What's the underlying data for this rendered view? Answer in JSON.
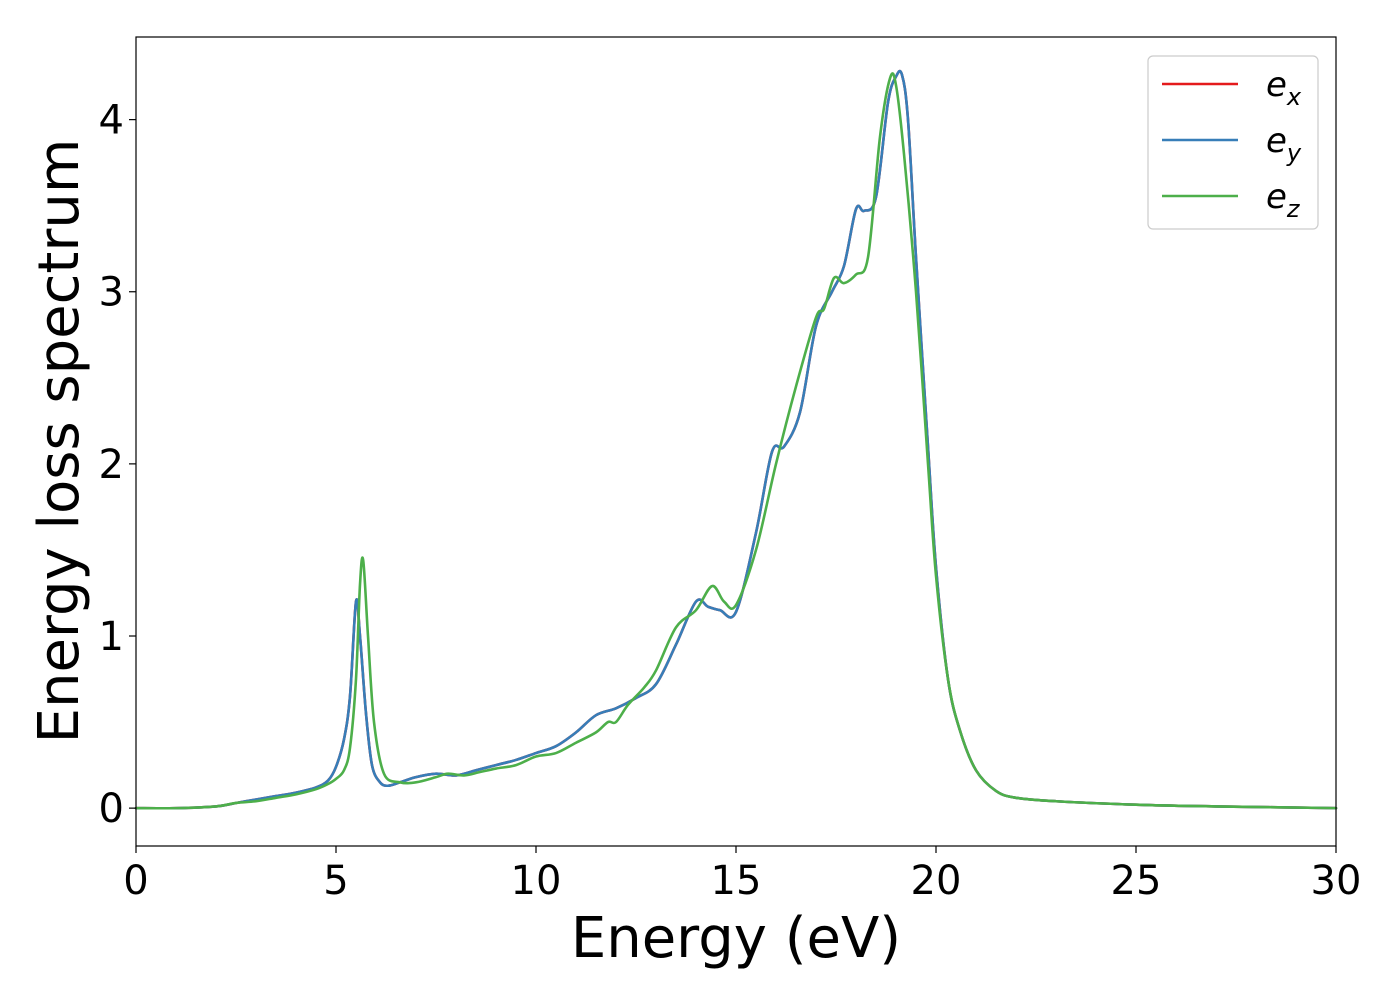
{
  "chart_data": {
    "type": "line",
    "title": "",
    "xlabel": "Energy (eV)",
    "ylabel": "Energy loss spectrum",
    "xlim": [
      0,
      30
    ],
    "ylim": [
      -0.22,
      4.48
    ],
    "xticks": [
      0,
      5,
      10,
      15,
      20,
      25,
      30
    ],
    "yticks": [
      0,
      1,
      2,
      3,
      4
    ],
    "grid": false,
    "legend": {
      "placement": "top-right",
      "entries": [
        {
          "base": "e",
          "sub": "x"
        },
        {
          "base": "e",
          "sub": "y"
        },
        {
          "base": "e",
          "sub": "z"
        }
      ]
    },
    "series": [
      {
        "name": "e_x",
        "color": "#e41a1c",
        "x": [
          0,
          1,
          2,
          2.5,
          3,
          3.5,
          4,
          4.5,
          4.8,
          5.0,
          5.2,
          5.35,
          5.5,
          5.6,
          5.75,
          5.9,
          6.1,
          6.3,
          6.6,
          7.0,
          7.5,
          8.0,
          8.5,
          9.0,
          9.5,
          10.0,
          10.5,
          11.0,
          11.5,
          12.0,
          12.5,
          13.0,
          13.5,
          14.0,
          14.3,
          14.6,
          15.0,
          15.5,
          15.9,
          16.2,
          16.6,
          17.0,
          17.4,
          17.7,
          18.0,
          18.2,
          18.5,
          18.8,
          19.0,
          19.15,
          19.3,
          19.5,
          19.8,
          20.0,
          20.3,
          20.6,
          21.0,
          21.5,
          22.0,
          23.0,
          25.0,
          27.0,
          30.0
        ],
        "y": [
          0.0,
          0.0,
          0.01,
          0.03,
          0.05,
          0.07,
          0.09,
          0.12,
          0.16,
          0.24,
          0.4,
          0.65,
          1.2,
          1.0,
          0.55,
          0.25,
          0.15,
          0.13,
          0.15,
          0.18,
          0.2,
          0.19,
          0.22,
          0.25,
          0.28,
          0.32,
          0.36,
          0.44,
          0.54,
          0.58,
          0.64,
          0.72,
          0.95,
          1.2,
          1.17,
          1.15,
          1.14,
          1.6,
          2.07,
          2.1,
          2.3,
          2.8,
          3.0,
          3.15,
          3.48,
          3.47,
          3.55,
          4.1,
          4.25,
          4.26,
          4.0,
          3.2,
          2.1,
          1.4,
          0.75,
          0.45,
          0.22,
          0.1,
          0.06,
          0.04,
          0.02,
          0.01,
          0.0
        ]
      },
      {
        "name": "e_y",
        "color": "#377eb8",
        "x": [
          0,
          1,
          2,
          2.5,
          3,
          3.5,
          4,
          4.5,
          4.8,
          5.0,
          5.2,
          5.35,
          5.5,
          5.6,
          5.75,
          5.9,
          6.1,
          6.3,
          6.6,
          7.0,
          7.5,
          8.0,
          8.5,
          9.0,
          9.5,
          10.0,
          10.5,
          11.0,
          11.5,
          12.0,
          12.5,
          13.0,
          13.5,
          14.0,
          14.3,
          14.6,
          15.0,
          15.5,
          15.9,
          16.2,
          16.6,
          17.0,
          17.4,
          17.7,
          18.0,
          18.2,
          18.5,
          18.8,
          19.0,
          19.15,
          19.3,
          19.5,
          19.8,
          20.0,
          20.3,
          20.6,
          21.0,
          21.5,
          22.0,
          23.0,
          25.0,
          27.0,
          30.0
        ],
        "y": [
          0.0,
          0.0,
          0.01,
          0.03,
          0.05,
          0.07,
          0.09,
          0.12,
          0.16,
          0.24,
          0.4,
          0.65,
          1.2,
          1.0,
          0.55,
          0.25,
          0.15,
          0.13,
          0.15,
          0.18,
          0.2,
          0.19,
          0.22,
          0.25,
          0.28,
          0.32,
          0.36,
          0.44,
          0.54,
          0.58,
          0.64,
          0.72,
          0.95,
          1.2,
          1.17,
          1.15,
          1.14,
          1.6,
          2.07,
          2.1,
          2.3,
          2.8,
          3.0,
          3.15,
          3.48,
          3.47,
          3.55,
          4.1,
          4.25,
          4.26,
          4.0,
          3.2,
          2.1,
          1.4,
          0.75,
          0.45,
          0.22,
          0.1,
          0.06,
          0.04,
          0.02,
          0.01,
          0.0
        ]
      },
      {
        "name": "e_z",
        "color": "#4daf4a",
        "x": [
          0,
          1,
          2,
          2.5,
          3,
          3.5,
          4,
          4.5,
          4.8,
          5.0,
          5.2,
          5.35,
          5.5,
          5.6,
          5.68,
          5.8,
          5.95,
          6.2,
          6.6,
          7.0,
          7.5,
          7.8,
          8.2,
          8.6,
          9.0,
          9.5,
          10.0,
          10.5,
          11.0,
          11.5,
          11.8,
          12.0,
          12.3,
          12.7,
          13.0,
          13.5,
          14.0,
          14.4,
          14.7,
          15.0,
          15.5,
          16.0,
          16.5,
          17.0,
          17.2,
          17.45,
          17.7,
          18.0,
          18.3,
          18.6,
          18.85,
          19.0,
          19.2,
          19.5,
          19.8,
          20.0,
          20.3,
          20.6,
          21.0,
          21.5,
          22.0,
          23.0,
          25.0,
          27.0,
          30.0
        ],
        "y": [
          0.0,
          0.0,
          0.01,
          0.03,
          0.04,
          0.06,
          0.08,
          0.11,
          0.14,
          0.17,
          0.22,
          0.35,
          0.75,
          1.3,
          1.44,
          1.0,
          0.5,
          0.2,
          0.15,
          0.15,
          0.18,
          0.2,
          0.19,
          0.21,
          0.23,
          0.25,
          0.3,
          0.32,
          0.38,
          0.44,
          0.5,
          0.5,
          0.6,
          0.7,
          0.8,
          1.05,
          1.15,
          1.29,
          1.2,
          1.18,
          1.5,
          2.0,
          2.45,
          2.85,
          2.9,
          3.08,
          3.05,
          3.1,
          3.2,
          3.9,
          4.24,
          4.2,
          3.8,
          3.0,
          2.0,
          1.35,
          0.75,
          0.45,
          0.22,
          0.1,
          0.06,
          0.04,
          0.02,
          0.01,
          0.0
        ]
      }
    ]
  }
}
